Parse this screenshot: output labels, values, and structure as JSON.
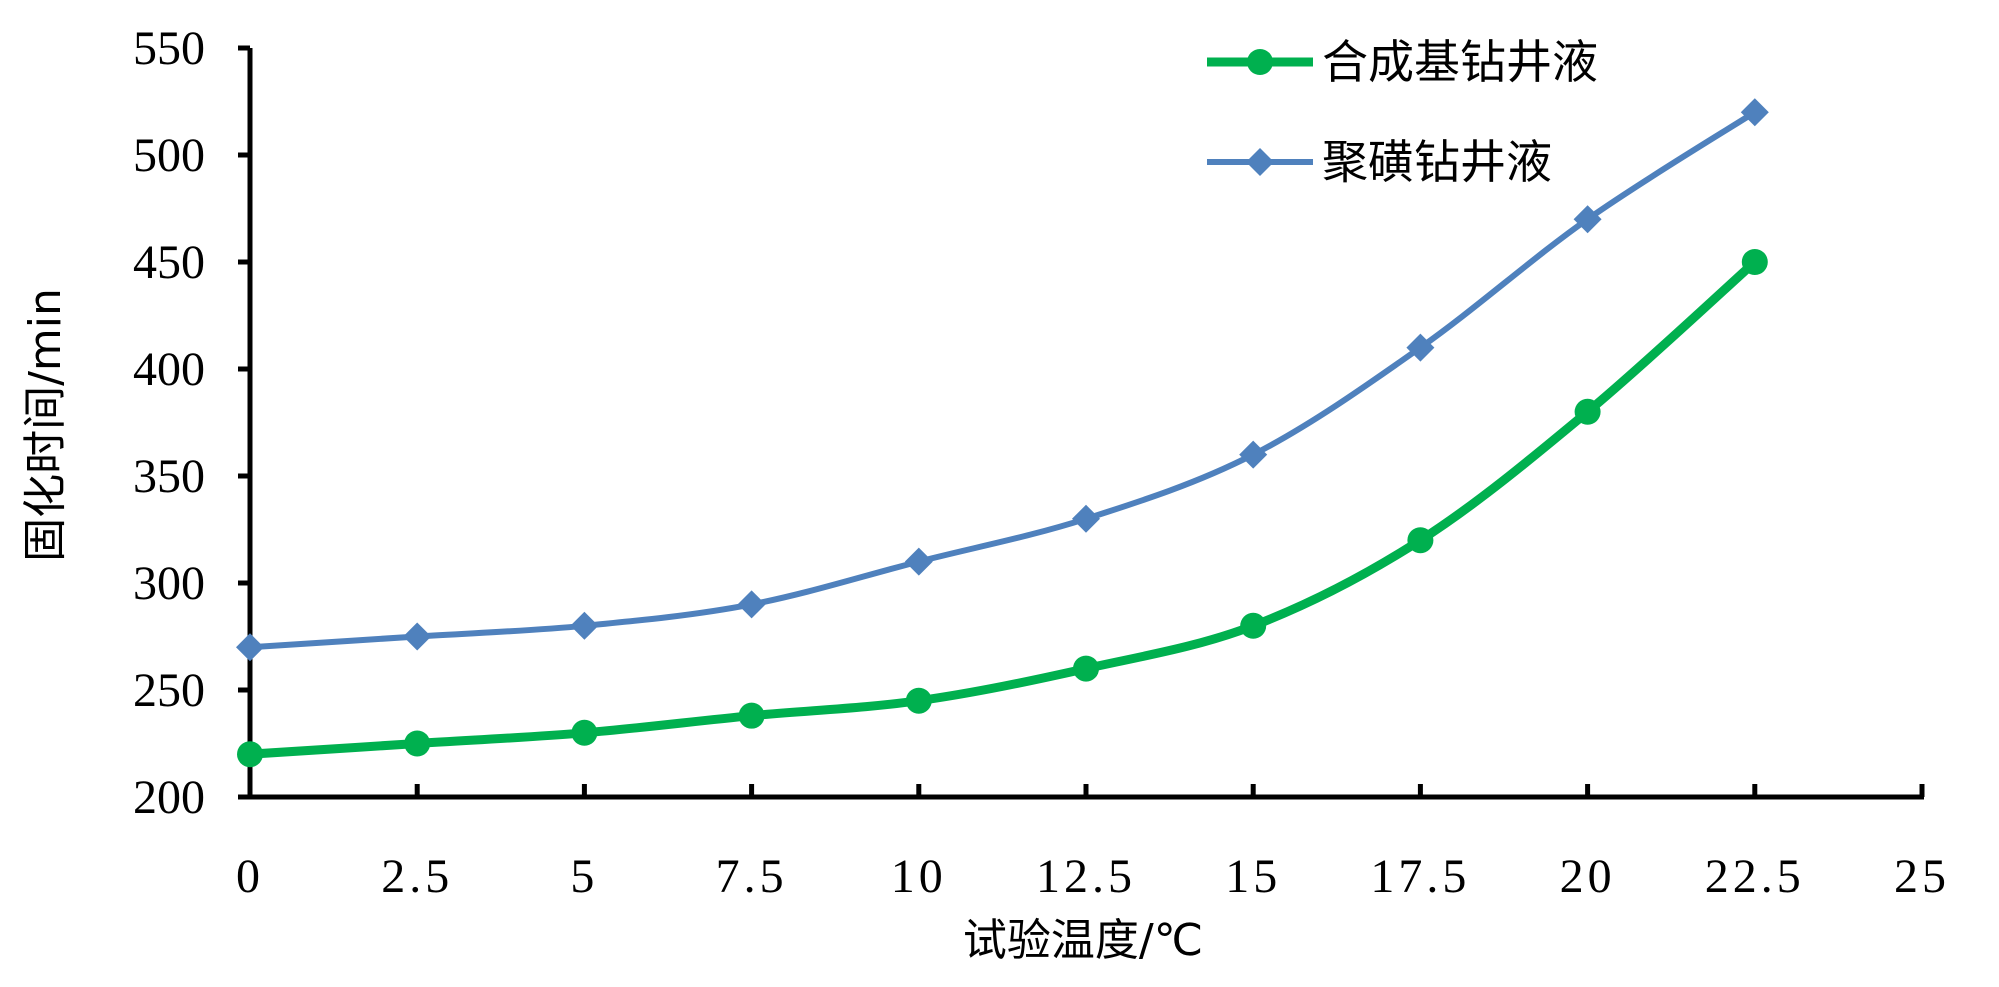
{
  "chart_data": {
    "type": "line",
    "xlabel": "试验温度/℃",
    "ylabel": "固化时间/min",
    "xlim": [
      0,
      25
    ],
    "ylim": [
      200,
      550
    ],
    "x_ticks": [
      "0",
      "2.5",
      "5",
      "7.5",
      "10",
      "12.5",
      "15",
      "17.5",
      "20",
      "22.5",
      "25"
    ],
    "y_ticks": [
      "200",
      "250",
      "300",
      "350",
      "400",
      "450",
      "500",
      "550"
    ],
    "x": [
      0,
      2.5,
      5,
      7.5,
      10,
      12.5,
      15,
      17.5,
      20,
      22.5
    ],
    "series": [
      {
        "name": "合成基钻井液",
        "color": "#00b04f",
        "marker": "circle",
        "values": [
          220,
          225,
          230,
          238,
          245,
          260,
          280,
          320,
          380,
          450
        ]
      },
      {
        "name": "聚磺钻井液",
        "color": "#4f81bd",
        "marker": "diamond",
        "values": [
          270,
          275,
          280,
          290,
          310,
          330,
          360,
          410,
          470,
          520
        ]
      }
    ],
    "legend_position": "top-right",
    "grid": false,
    "smooth": true
  }
}
